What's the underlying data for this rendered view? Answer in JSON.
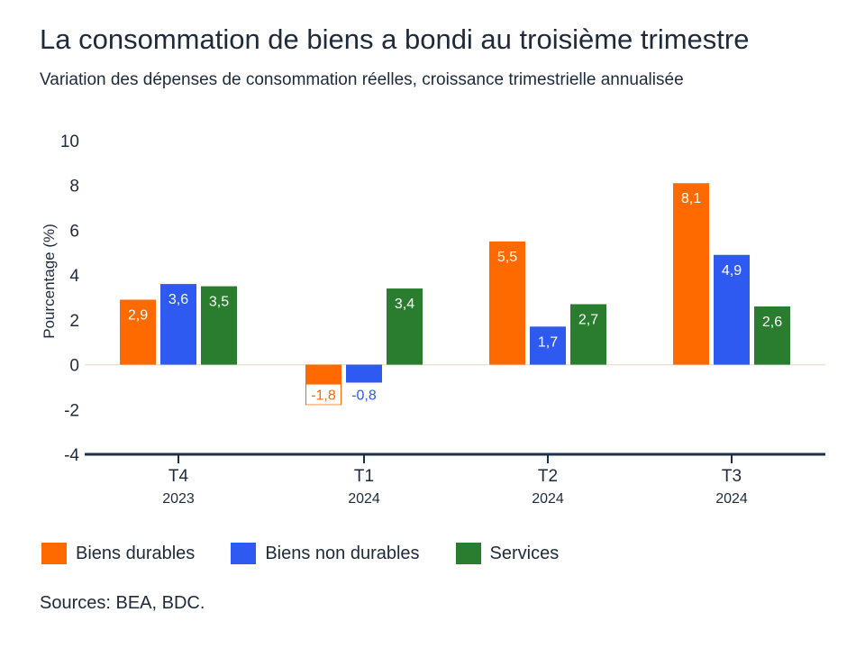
{
  "title": "La consommation de biens a bondi au troisième trimestre",
  "subtitle": "Variation des dépenses de consommation réelles, croissance trimestrielle annualisée",
  "source": "Sources: BEA, BDC.",
  "colors": {
    "durables": "#fe6a00",
    "non_durables": "#2f5af2",
    "services": "#2a7d2e",
    "axis": "#1b2f4a",
    "zero_line": "#e8e2cf"
  },
  "chart_data": {
    "type": "bar",
    "categories": [
      "T4",
      "T1",
      "T2",
      "T3"
    ],
    "category_years": [
      "2023",
      "2024",
      "2024",
      "2024"
    ],
    "series": [
      {
        "name": "Biens durables",
        "values": [
          2.9,
          -1.8,
          5.5,
          8.1
        ],
        "labels": [
          "2,9",
          "-1,8",
          "5,5",
          "8,1"
        ]
      },
      {
        "name": "Biens non durables",
        "values": [
          3.6,
          -0.8,
          1.7,
          4.9
        ],
        "labels": [
          "3,6",
          "-0,8",
          "1,7",
          "4,9"
        ]
      },
      {
        "name": "Services",
        "values": [
          3.5,
          3.4,
          2.7,
          2.6
        ],
        "labels": [
          "3,5",
          "3,4",
          "2,7",
          "2,6"
        ]
      }
    ],
    "ylabel": "Pourcentage (%)",
    "ylim": [
      -4,
      10
    ],
    "yticks": [
      10,
      8,
      6,
      4,
      2,
      0,
      -2,
      -4
    ],
    "legend": "bottom-left",
    "grid": false
  }
}
